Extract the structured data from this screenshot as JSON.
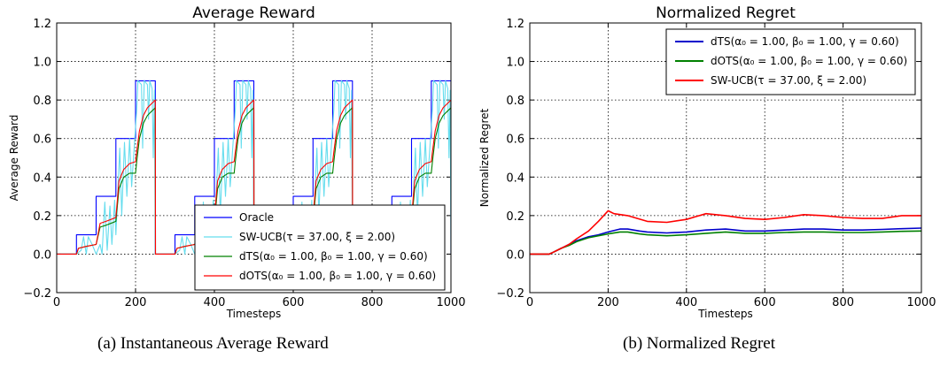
{
  "captions": {
    "a": "(a) Instantaneous Average Reward",
    "b": "(b) Normalized Regret"
  },
  "chart_data": [
    {
      "type": "line",
      "title": "Average Reward",
      "xlabel": "Timesteps",
      "ylabel": "Average Reward",
      "xlim": [
        0,
        1000
      ],
      "ylim": [
        -0.2,
        1.2
      ],
      "xticks": [
        "0",
        "200",
        "400",
        "600",
        "800",
        "1000"
      ],
      "yticks": [
        "−0.2",
        "0.0",
        "0.2",
        "0.4",
        "0.6",
        "0.8",
        "1.0",
        "1.2"
      ],
      "grid": true,
      "legend_position": "lower-right",
      "series": [
        {
          "name": "Oracle",
          "color": "#0000ff",
          "cycle": {
            "period": 250,
            "repeats": 4,
            "steps": [
              [
                0,
                0.0
              ],
              [
                50,
                0.1
              ],
              [
                100,
                0.3
              ],
              [
                150,
                0.6
              ],
              [
                200,
                0.9
              ],
              [
                250,
                0.0
              ]
            ]
          }
        },
        {
          "name": "SW-UCB(τ = 37.00, ξ = 2.00)",
          "color": "#66ddee",
          "cycle_points": [
            [
              0,
              0.0
            ],
            [
              50,
              0.0
            ],
            [
              62,
              0.02
            ],
            [
              68,
              0.09
            ],
            [
              75,
              0.0
            ],
            [
              80,
              0.09
            ],
            [
              90,
              0.05
            ],
            [
              100,
              0.0
            ],
            [
              110,
              0.05
            ],
            [
              115,
              0.0
            ],
            [
              122,
              0.27
            ],
            [
              128,
              0.02
            ],
            [
              135,
              0.25
            ],
            [
              140,
              0.05
            ],
            [
              147,
              0.28
            ],
            [
              150,
              0.1
            ],
            [
              160,
              0.55
            ],
            [
              165,
              0.2
            ],
            [
              172,
              0.58
            ],
            [
              178,
              0.3
            ],
            [
              185,
              0.6
            ],
            [
              190,
              0.35
            ],
            [
              198,
              0.6
            ],
            [
              203,
              0.75
            ],
            [
              206,
              0.9
            ],
            [
              215,
              0.88
            ],
            [
              218,
              0.55
            ],
            [
              222,
              0.9
            ],
            [
              230,
              0.88
            ],
            [
              233,
              0.7
            ],
            [
              236,
              0.9
            ],
            [
              242,
              0.86
            ],
            [
              245,
              0.5
            ],
            [
              248,
              0.85
            ],
            [
              250,
              0.0
            ]
          ]
        },
        {
          "name": "dTS(α₀ = 1.00, β₀ = 1.00, γ = 0.60)",
          "color": "#008000",
          "cycle_points": [
            [
              0,
              0.0
            ],
            [
              50,
              0.0
            ],
            [
              55,
              0.03
            ],
            [
              75,
              0.04
            ],
            [
              100,
              0.05
            ],
            [
              110,
              0.14
            ],
            [
              125,
              0.15
            ],
            [
              150,
              0.17
            ],
            [
              158,
              0.34
            ],
            [
              170,
              0.4
            ],
            [
              185,
              0.42
            ],
            [
              200,
              0.42
            ],
            [
              203,
              0.48
            ],
            [
              210,
              0.6
            ],
            [
              220,
              0.68
            ],
            [
              230,
              0.72
            ],
            [
              240,
              0.74
            ],
            [
              250,
              0.76
            ],
            [
              250.5,
              0.0
            ]
          ]
        },
        {
          "name": "dOTS(α₀ = 1.00, β₀ = 1.00, γ = 0.60)",
          "color": "#ff0000",
          "cycle_points": [
            [
              0,
              0.0
            ],
            [
              50,
              0.0
            ],
            [
              55,
              0.03
            ],
            [
              75,
              0.04
            ],
            [
              100,
              0.05
            ],
            [
              110,
              0.16
            ],
            [
              125,
              0.17
            ],
            [
              150,
              0.19
            ],
            [
              158,
              0.38
            ],
            [
              170,
              0.44
            ],
            [
              185,
              0.47
            ],
            [
              200,
              0.48
            ],
            [
              203,
              0.53
            ],
            [
              210,
              0.64
            ],
            [
              220,
              0.72
            ],
            [
              230,
              0.76
            ],
            [
              240,
              0.78
            ],
            [
              250,
              0.8
            ],
            [
              250.5,
              0.0
            ]
          ]
        }
      ]
    },
    {
      "type": "line",
      "title": "Normalized Regret",
      "xlabel": "Timesteps",
      "ylabel": "Normalized Regret",
      "xlim": [
        0,
        1000
      ],
      "ylim": [
        -0.2,
        1.2
      ],
      "xticks": [
        "0",
        "200",
        "400",
        "600",
        "800",
        "1000"
      ],
      "yticks": [
        "−0.2",
        "0.0",
        "0.2",
        "0.4",
        "0.6",
        "0.8",
        "1.0",
        "1.2"
      ],
      "grid": true,
      "legend_position": "upper-right",
      "series": [
        {
          "name": "dTS(α₀ = 1.00, β₀ = 1.00, γ = 0.60)",
          "color": "#0000cc",
          "points": [
            [
              0,
              0.0
            ],
            [
              50,
              0.0
            ],
            [
              60,
              0.01
            ],
            [
              80,
              0.03
            ],
            [
              100,
              0.05
            ],
            [
              120,
              0.07
            ],
            [
              150,
              0.09
            ],
            [
              175,
              0.1
            ],
            [
              200,
              0.115
            ],
            [
              230,
              0.13
            ],
            [
              250,
              0.13
            ],
            [
              280,
              0.12
            ],
            [
              300,
              0.115
            ],
            [
              350,
              0.11
            ],
            [
              400,
              0.115
            ],
            [
              450,
              0.125
            ],
            [
              500,
              0.13
            ],
            [
              550,
              0.12
            ],
            [
              600,
              0.12
            ],
            [
              650,
              0.125
            ],
            [
              700,
              0.13
            ],
            [
              750,
              0.13
            ],
            [
              800,
              0.125
            ],
            [
              850,
              0.125
            ],
            [
              900,
              0.128
            ],
            [
              950,
              0.132
            ],
            [
              1000,
              0.135
            ]
          ]
        },
        {
          "name": "dOTS(α₀ = 1.00, β₀ = 1.00, γ = 0.60)",
          "color": "#008000",
          "points": [
            [
              0,
              0.0
            ],
            [
              50,
              0.0
            ],
            [
              60,
              0.01
            ],
            [
              80,
              0.03
            ],
            [
              100,
              0.045
            ],
            [
              120,
              0.065
            ],
            [
              150,
              0.085
            ],
            [
              175,
              0.095
            ],
            [
              200,
              0.105
            ],
            [
              230,
              0.115
            ],
            [
              250,
              0.115
            ],
            [
              280,
              0.105
            ],
            [
              300,
              0.1
            ],
            [
              350,
              0.095
            ],
            [
              400,
              0.1
            ],
            [
              450,
              0.108
            ],
            [
              500,
              0.115
            ],
            [
              550,
              0.108
            ],
            [
              600,
              0.108
            ],
            [
              650,
              0.112
            ],
            [
              700,
              0.115
            ],
            [
              750,
              0.115
            ],
            [
              800,
              0.112
            ],
            [
              850,
              0.112
            ],
            [
              900,
              0.115
            ],
            [
              950,
              0.118
            ],
            [
              1000,
              0.12
            ]
          ]
        },
        {
          "name": "SW-UCB(τ = 37.00, ξ = 2.00)",
          "color": "#ff0000",
          "points": [
            [
              0,
              0.0
            ],
            [
              50,
              0.0
            ],
            [
              60,
              0.01
            ],
            [
              80,
              0.03
            ],
            [
              100,
              0.05
            ],
            [
              120,
              0.08
            ],
            [
              150,
              0.12
            ],
            [
              175,
              0.17
            ],
            [
              200,
              0.225
            ],
            [
              215,
              0.21
            ],
            [
              250,
              0.2
            ],
            [
              275,
              0.185
            ],
            [
              300,
              0.17
            ],
            [
              350,
              0.165
            ],
            [
              400,
              0.18
            ],
            [
              425,
              0.195
            ],
            [
              450,
              0.21
            ],
            [
              500,
              0.2
            ],
            [
              550,
              0.185
            ],
            [
              600,
              0.18
            ],
            [
              650,
              0.19
            ],
            [
              700,
              0.205
            ],
            [
              750,
              0.2
            ],
            [
              800,
              0.19
            ],
            [
              850,
              0.185
            ],
            [
              900,
              0.185
            ],
            [
              950,
              0.2
            ],
            [
              1000,
              0.2
            ]
          ]
        }
      ]
    }
  ]
}
